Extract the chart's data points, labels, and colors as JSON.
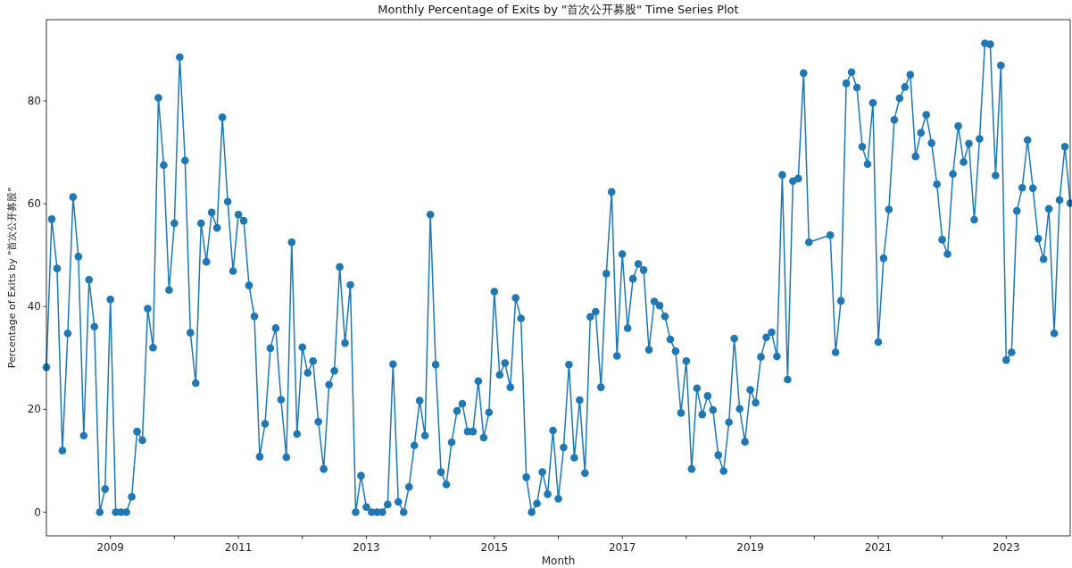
{
  "chart_data": {
    "type": "line",
    "title": "Monthly Percentage of Exits by \"首次公开募股\" Time Series Plot",
    "xlabel": "Month",
    "ylabel": "Percentage of Exits by \"首次公开募股\"",
    "x": [
      "2008-01",
      "2008-02",
      "2008-03",
      "2008-04",
      "2008-05",
      "2008-06",
      "2008-07",
      "2008-08",
      "2008-09",
      "2008-10",
      "2008-11",
      "2008-12",
      "2009-01",
      "2009-02",
      "2009-03",
      "2009-04",
      "2009-05",
      "2009-06",
      "2009-07",
      "2009-08",
      "2009-09",
      "2009-10",
      "2009-11",
      "2009-12",
      "2010-01",
      "2010-02",
      "2010-03",
      "2010-04",
      "2010-05",
      "2010-06",
      "2010-07",
      "2010-08",
      "2010-09",
      "2010-10",
      "2010-11",
      "2010-12",
      "2011-01",
      "2011-02",
      "2011-03",
      "2011-04",
      "2011-05",
      "2011-06",
      "2011-07",
      "2011-08",
      "2011-09",
      "2011-10",
      "2011-11",
      "2011-12",
      "2012-01",
      "2012-02",
      "2012-03",
      "2012-04",
      "2012-05",
      "2012-06",
      "2012-07",
      "2012-08",
      "2012-09",
      "2012-10",
      "2012-11",
      "2012-12",
      "2013-01",
      "2013-02",
      "2013-03",
      "2013-04",
      "2013-05",
      "2013-06",
      "2013-07",
      "2013-08",
      "2013-09",
      "2013-10",
      "2013-11",
      "2013-12",
      "2014-01",
      "2014-02",
      "2014-03",
      "2014-04",
      "2014-05",
      "2014-06",
      "2014-07",
      "2014-08",
      "2014-09",
      "2014-10",
      "2014-11",
      "2014-12",
      "2015-01",
      "2015-02",
      "2015-03",
      "2015-04",
      "2015-05",
      "2015-06",
      "2015-07",
      "2015-08",
      "2015-09",
      "2015-10",
      "2015-11",
      "2015-12",
      "2016-01",
      "2016-02",
      "2016-03",
      "2016-04",
      "2016-05",
      "2016-06",
      "2016-07",
      "2016-08",
      "2016-09",
      "2016-10",
      "2016-11",
      "2016-12",
      "2017-01",
      "2017-02",
      "2017-03",
      "2017-04",
      "2017-05",
      "2017-06",
      "2017-07",
      "2017-08",
      "2017-09",
      "2017-10",
      "2017-11",
      "2017-12",
      "2018-01",
      "2018-02",
      "2018-03",
      "2018-04",
      "2018-05",
      "2018-06",
      "2018-07",
      "2018-08",
      "2018-09",
      "2018-10",
      "2018-11",
      "2018-12",
      "2019-01",
      "2019-02",
      "2019-03",
      "2019-04",
      "2019-05",
      "2019-06",
      "2019-07",
      "2019-08",
      "2019-09",
      "2019-10",
      "2019-11",
      "2019-12",
      "2020-04",
      "2020-05",
      "2020-06",
      "2020-07",
      "2020-08",
      "2020-09",
      "2020-10",
      "2020-11",
      "2020-12",
      "2021-01",
      "2021-02",
      "2021-03",
      "2021-04",
      "2021-05",
      "2021-06",
      "2021-07",
      "2021-08",
      "2021-09",
      "2021-10",
      "2021-11",
      "2021-12",
      "2022-01",
      "2022-02",
      "2022-03",
      "2022-04",
      "2022-05",
      "2022-06",
      "2022-07",
      "2022-08",
      "2022-09",
      "2022-10",
      "2022-11",
      "2022-12",
      "2023-01",
      "2023-02",
      "2023-03",
      "2023-04",
      "2023-05",
      "2023-06",
      "2023-07",
      "2023-08",
      "2023-09",
      "2023-10",
      "2023-11",
      "2023-12",
      "2024-01"
    ],
    "series": [
      {
        "color": "#1f77b4",
        "values": [
          28.2,
          57,
          47.4,
          12,
          34.8,
          61.3,
          49.7,
          14.9,
          45.2,
          36.1,
          0,
          4.5,
          41.4,
          0,
          0,
          0,
          3,
          15.7,
          14,
          39.6,
          32,
          80.6,
          67.5,
          43.2,
          56.2,
          88.5,
          68.4,
          34.9,
          25.1,
          56.2,
          48.7,
          58.3,
          55.3,
          76.8,
          60.4,
          46.9,
          57.9,
          56.7,
          44.1,
          38.1,
          10.8,
          17.2,
          31.9,
          35.8,
          21.9,
          10.7,
          52.5,
          15.2,
          32.1,
          27.1,
          29.4,
          17.6,
          8.4,
          24.8,
          27.5,
          47.7,
          32.9,
          44.2,
          0,
          7.1,
          1,
          0,
          0,
          0,
          1.5,
          28.8,
          2,
          0,
          4.9,
          13,
          21.7,
          14.9,
          57.9,
          28.7,
          7.8,
          5.4,
          13.6,
          19.7,
          21.1,
          15.7,
          15.7,
          25.5,
          14.5,
          19.4,
          42.9,
          26.7,
          29,
          24.3,
          41.7,
          37.7,
          6.8,
          0,
          1.7,
          7.8,
          3.5,
          15.9,
          2.6,
          12.6,
          28.7,
          10.6,
          21.8,
          7.6,
          38,
          39,
          24.3,
          46.4,
          62.3,
          30.4,
          50.2,
          35.8,
          45.4,
          48.3,
          47.1,
          31.6,
          41,
          40.2,
          38.1,
          33.6,
          31.3,
          19.3,
          29.4,
          8.4,
          24.1,
          19,
          22.6,
          19.9,
          11.1,
          8,
          17.5,
          33.8,
          20.1,
          13.7,
          23.8,
          21.3,
          30.2,
          34,
          35,
          30.3,
          65.6,
          25.8,
          64.4,
          64.9,
          85.4,
          52.5,
          53.9,
          31.1,
          41.1,
          83.4,
          85.6,
          82.6,
          71.1,
          67.7,
          79.6,
          33.1,
          49.4,
          58.9,
          76.3,
          80.5,
          82.7,
          85.1,
          69.2,
          73.8,
          77.3,
          71.8,
          63.8,
          53,
          50.2,
          65.8,
          75.1,
          68.1,
          71.7,
          56.9,
          72.6,
          91.2,
          91,
          65.5,
          86.9,
          29.6,
          31.1,
          58.6,
          63.1,
          72.4,
          63,
          53.2,
          49.2,
          59,
          34.8,
          60.7,
          71.1,
          60.1
        ]
      }
    ],
    "xlim": [
      "2008-01",
      "2024-01"
    ],
    "xticks": [
      {
        "value": "2009-01",
        "label": "2009"
      },
      {
        "value": "2010-01",
        "label": null
      },
      {
        "value": "2011-01",
        "label": "2011"
      },
      {
        "value": "2012-01",
        "label": null
      },
      {
        "value": "2013-01",
        "label": "2013"
      },
      {
        "value": "2014-01",
        "label": null
      },
      {
        "value": "2015-01",
        "label": "2015"
      },
      {
        "value": "2016-01",
        "label": null
      },
      {
        "value": "2017-01",
        "label": "2017"
      },
      {
        "value": "2018-01",
        "label": null
      },
      {
        "value": "2019-01",
        "label": "2019"
      },
      {
        "value": "2020-01",
        "label": null
      },
      {
        "value": "2021-01",
        "label": "2021"
      },
      {
        "value": "2022-01",
        "label": null
      },
      {
        "value": "2023-01",
        "label": "2023"
      }
    ],
    "ylim": [
      -4.6,
      95.8
    ],
    "yticks": [
      0,
      20,
      40,
      60,
      80
    ],
    "marker": "circle",
    "line_style": "solid"
  }
}
